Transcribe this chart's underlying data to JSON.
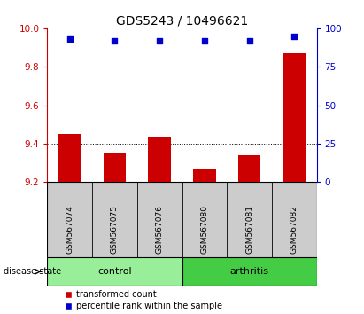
{
  "title": "GDS5243 / 10496621",
  "samples": [
    "GSM567074",
    "GSM567075",
    "GSM567076",
    "GSM567080",
    "GSM567081",
    "GSM567082"
  ],
  "transformed_counts": [
    9.45,
    9.35,
    9.43,
    9.27,
    9.34,
    9.87
  ],
  "percentile_ranks": [
    93,
    92,
    92,
    92,
    92,
    95
  ],
  "ylim_left": [
    9.2,
    10.0
  ],
  "ylim_right": [
    0,
    100
  ],
  "yticks_left": [
    9.2,
    9.4,
    9.6,
    9.8,
    10.0
  ],
  "yticks_right": [
    0,
    25,
    50,
    75,
    100
  ],
  "bar_color": "#cc0000",
  "dot_color": "#0000cc",
  "control_color": "#99ee99",
  "arthritis_color": "#44cc44",
  "gray_color": "#cccccc",
  "control_samples": [
    "GSM567074",
    "GSM567075",
    "GSM567076"
  ],
  "arthritis_samples": [
    "GSM567080",
    "GSM567081",
    "GSM567082"
  ],
  "tick_color_left": "#cc0000",
  "tick_color_right": "#0000cc",
  "bar_width": 0.5,
  "title_fontsize": 10,
  "yticklabel_fontsize": 7.5,
  "sample_fontsize": 6.5,
  "legend_fontsize": 7,
  "grid_ticks": [
    9.4,
    9.6,
    9.8
  ]
}
